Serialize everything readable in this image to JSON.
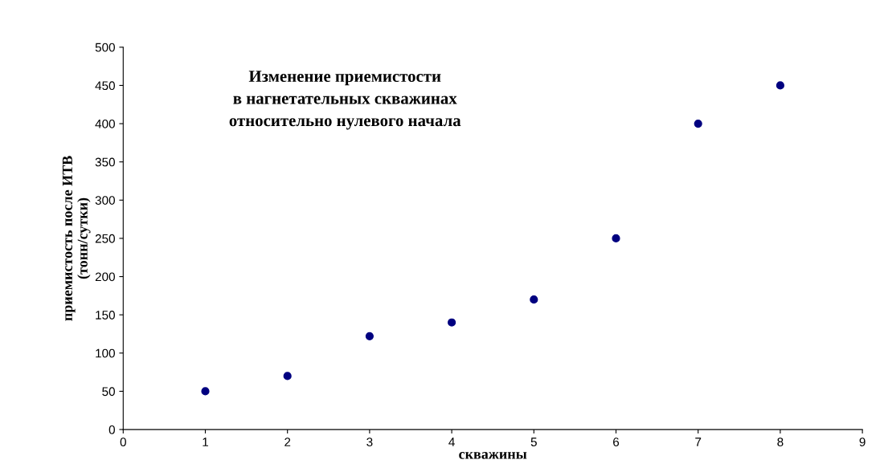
{
  "chart_data": {
    "type": "scatter",
    "title": "Изменение приемистости\nв нагнетательных скважинах\nотносительно нулевого начала",
    "xlabel": "скважины",
    "ylabel": "приемистость после ИТВ\n(тонн/сутки)",
    "x": [
      1,
      2,
      3,
      4,
      5,
      6,
      7,
      8
    ],
    "series": [
      {
        "color": "#000080",
        "values": [
          50,
          70,
          122,
          140,
          170,
          250,
          400,
          450
        ]
      }
    ],
    "xlim": [
      0,
      9
    ],
    "xticks": [
      0,
      1,
      2,
      3,
      4,
      5,
      6,
      7,
      8,
      9
    ],
    "ylim": [
      0,
      500
    ],
    "yticks": [
      0,
      50,
      100,
      150,
      200,
      250,
      300,
      350,
      400,
      450,
      500
    ],
    "grid": false,
    "legend": false,
    "marker": "circle"
  }
}
